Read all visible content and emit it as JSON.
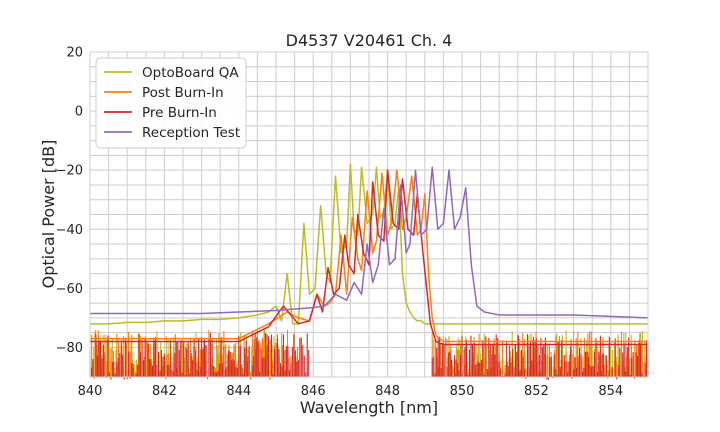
{
  "chart_data": {
    "type": "line",
    "title": "D4537 V20461 Ch. 4",
    "xlabel": "Wavelength [nm]",
    "ylabel": "Optical Power [dB]",
    "xlim": [
      840,
      855
    ],
    "ylim": [
      -90,
      20
    ],
    "xticks": [
      840,
      842,
      844,
      846,
      848,
      850,
      852,
      854
    ],
    "xtick_labels": [
      "840",
      "842",
      "844",
      "846",
      "848",
      "850",
      "852",
      "854"
    ],
    "yticks": [
      20,
      0,
      -20,
      -40,
      -60,
      -80
    ],
    "ytick_labels": [
      "20",
      "0",
      "−20",
      "−40",
      "−60",
      "−80"
    ],
    "grid": true,
    "legend_position": "top-left",
    "series": [
      {
        "name": "OptoBoard QA",
        "color": "#bcbd22",
        "x": [
          840.0,
          840.5,
          841.0,
          841.5,
          842.0,
          842.5,
          843.0,
          843.5,
          844.0,
          844.5,
          844.8,
          845.0,
          845.15,
          845.3,
          845.45,
          845.6,
          845.75,
          845.9,
          846.05,
          846.2,
          846.35,
          846.45,
          846.6,
          846.75,
          846.9,
          847.0,
          847.1,
          847.2,
          847.3,
          847.45,
          847.6,
          847.7,
          847.8,
          847.9,
          848.0,
          848.1,
          848.2,
          848.3,
          848.4,
          848.5,
          848.6,
          848.7,
          848.8,
          848.9,
          849.0,
          849.1,
          849.3,
          849.6,
          850.0,
          850.5,
          851.0,
          851.5,
          852.0,
          852.5,
          853.0,
          853.5,
          854.0,
          854.5,
          855.0
        ],
        "y": [
          -72,
          -72,
          -71.5,
          -71.5,
          -71,
          -71,
          -70.5,
          -70.5,
          -70,
          -69,
          -68,
          -66,
          -71,
          -55,
          -72,
          -72,
          -38,
          -62,
          -60,
          -32,
          -55,
          -58,
          -22,
          -48,
          -45,
          -18,
          -40,
          -42,
          -19,
          -38,
          -35,
          -19,
          -36,
          -34,
          -20,
          -40,
          -38,
          -26,
          -55,
          -65,
          -68,
          -70,
          -71,
          -71,
          -72,
          -72,
          -72,
          -72,
          -72,
          -72,
          -72,
          -72,
          -72,
          -72,
          -72,
          -72,
          -72,
          -72,
          -72
        ]
      },
      {
        "name": "Post Burn-In",
        "color": "#ff7f0e",
        "x": [
          840.0,
          841.0,
          842.0,
          843.0,
          844.0,
          844.8,
          845.3,
          845.6,
          845.9,
          846.1,
          846.3,
          846.45,
          846.6,
          846.75,
          846.9,
          847.05,
          847.2,
          847.3,
          847.45,
          847.6,
          847.7,
          847.85,
          848.0,
          848.1,
          848.25,
          848.4,
          848.5,
          848.65,
          848.8,
          848.9,
          849.0,
          849.1,
          849.2,
          849.3,
          849.5,
          850.0,
          851.0,
          852.0,
          853.0,
          854.0,
          855.0
        ],
        "y": [
          -77,
          -77,
          -77,
          -77,
          -77,
          -72,
          -68,
          -70,
          -71,
          -62,
          -66,
          -65,
          -62,
          -42,
          -62,
          -36,
          -50,
          -54,
          -27,
          -48,
          -44,
          -21,
          -42,
          -38,
          -20,
          -40,
          -36,
          -22,
          -42,
          -40,
          -28,
          -55,
          -70,
          -76,
          -78,
          -78,
          -78,
          -78,
          -78,
          -78,
          -78
        ]
      },
      {
        "name": "Pre Burn-In",
        "color": "#d62728",
        "x": [
          840.0,
          841.0,
          842.0,
          843.0,
          844.0,
          844.8,
          845.2,
          845.6,
          845.9,
          846.1,
          846.25,
          846.4,
          846.55,
          846.7,
          846.85,
          846.95,
          847.1,
          847.2,
          847.35,
          847.5,
          847.6,
          847.75,
          847.9,
          848.0,
          848.15,
          848.3,
          848.4,
          848.55,
          848.7,
          848.8,
          848.95,
          849.05,
          849.15,
          849.3,
          849.5,
          850.0,
          851.0,
          852.0,
          853.0,
          854.0,
          855.0
        ],
        "y": [
          -78,
          -78,
          -78,
          -78,
          -78,
          -73,
          -66,
          -72,
          -71,
          -62,
          -68,
          -53,
          -62,
          -60,
          -42,
          -52,
          -55,
          -35,
          -48,
          -52,
          -24,
          -42,
          -44,
          -20,
          -38,
          -40,
          -23,
          -40,
          -42,
          -28,
          -48,
          -60,
          -72,
          -78,
          -79,
          -79,
          -79,
          -79,
          -79,
          -79,
          -79
        ]
      },
      {
        "name": "Reception Test",
        "color": "#9467bd",
        "x": [
          840.0,
          841.0,
          842.0,
          843.0,
          844.0,
          845.0,
          845.5,
          846.0,
          846.3,
          846.6,
          846.9,
          847.1,
          847.3,
          847.45,
          847.6,
          847.75,
          847.9,
          848.05,
          848.2,
          848.35,
          848.5,
          848.6,
          848.75,
          848.9,
          849.05,
          849.2,
          849.35,
          849.5,
          849.65,
          849.8,
          849.95,
          850.1,
          850.25,
          850.4,
          850.6,
          851.0,
          852.0,
          853.0,
          854.0,
          855.0
        ],
        "y": [
          -68.5,
          -68.5,
          -68.5,
          -68.5,
          -68,
          -67.5,
          -67,
          -66.5,
          -66,
          -62,
          -64,
          -58,
          -62,
          -45,
          -58,
          -52,
          -33,
          -52,
          -50,
          -25,
          -48,
          -45,
          -20,
          -42,
          -40,
          -19,
          -40,
          -38,
          -20,
          -40,
          -36,
          -26,
          -52,
          -66,
          -68,
          -69,
          -69,
          -69,
          -69.5,
          -70
        ]
      }
    ]
  }
}
